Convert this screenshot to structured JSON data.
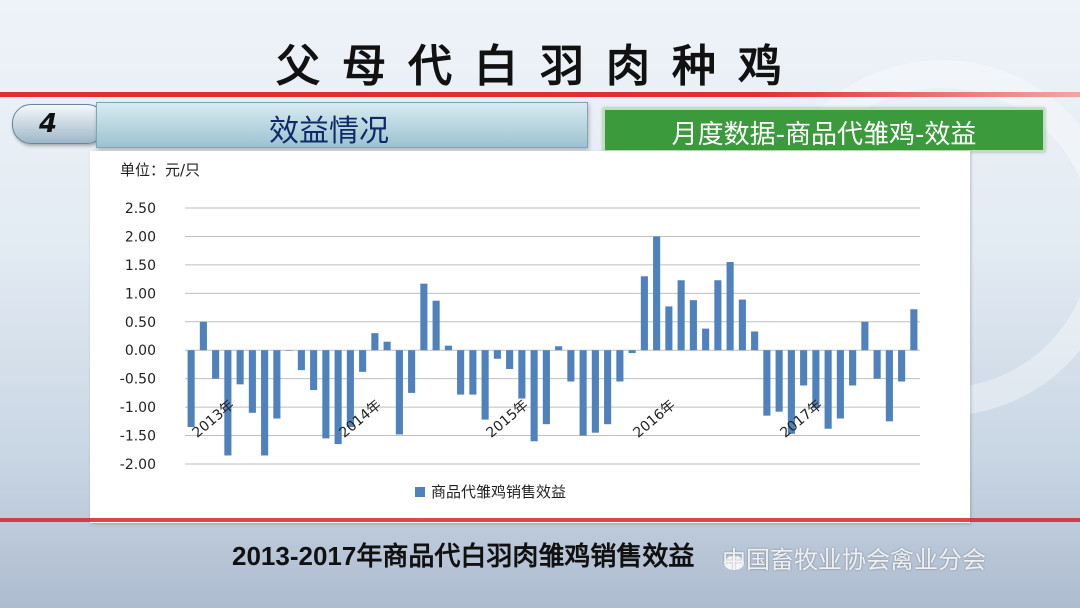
{
  "slide": {
    "title": "父母代白羽肉种鸡",
    "section_number": "4",
    "section_title": "效益情况",
    "subtitle_label": "月度数据-商品代雏鸡-效益",
    "caption": "2013-2017年商品代白羽肉雏鸡销售效益",
    "watermark": "中国畜牧业协会禽业分会"
  },
  "colors": {
    "accent_red": "#d6262a",
    "bar": "#4f81bd",
    "label_green": "#3b9a3c"
  },
  "chart_data": {
    "type": "bar",
    "unit_label": "单位：元/只",
    "ylim": [
      -2.0,
      2.5
    ],
    "yticks": [
      "2.50",
      "2.00",
      "1.50",
      "1.00",
      "0.50",
      "0.00",
      "-0.50",
      "-1.00",
      "-1.50",
      "-2.00"
    ],
    "grid": true,
    "legend_position": "bottom",
    "series": [
      {
        "name": "商品代雏鸡销售效益",
        "values": [
          -1.35,
          0.5,
          -0.5,
          -1.85,
          -0.6,
          -1.1,
          -1.85,
          -1.2,
          0.0,
          -0.35,
          -0.7,
          -1.55,
          -1.65,
          -1.35,
          -0.38,
          0.3,
          0.15,
          -1.48,
          -0.75,
          1.17,
          0.87,
          0.08,
          -0.78,
          -0.78,
          -1.22,
          -0.15,
          -0.33,
          -0.85,
          -1.6,
          -1.3,
          0.07,
          -0.55,
          -1.5,
          -1.45,
          -1.3,
          -0.55,
          -0.05,
          1.3,
          2.0,
          0.77,
          1.23,
          0.88,
          0.38,
          1.23,
          1.55,
          0.89,
          0.33,
          -1.15,
          -1.08,
          -1.47,
          -0.62,
          -1.02,
          -1.38,
          -1.2,
          -0.62,
          0.5,
          -0.5,
          -1.25,
          -0.55,
          0.72
        ]
      }
    ],
    "x_year_labels": [
      "2013年",
      "2014年",
      "2015年",
      "2016年",
      "2017年"
    ]
  }
}
